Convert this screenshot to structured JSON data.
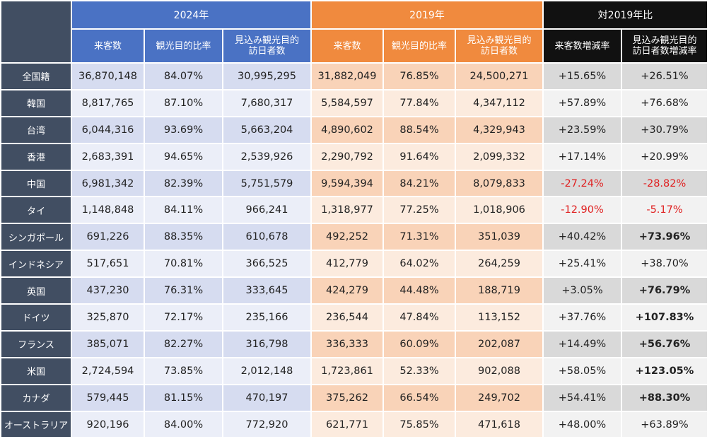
{
  "groups": {
    "y2024": "2024年",
    "y2019": "2019年",
    "compare": "対2019年比"
  },
  "subheaders": {
    "visitors": "来客数",
    "tourism_ratio": "観光目的比率",
    "est_tourist_visitors": "見込み観光目的\n訪日者数",
    "visitor_change": "来客数増減率",
    "est_tourist_change": "見込み観光目的\n訪日者数増減率"
  },
  "rows": [
    {
      "name": "全国籍",
      "v24": "36,870,148",
      "r24": "84.07%",
      "t24": "30,995,295",
      "v19": "31,882,049",
      "r19": "76.85%",
      "t19": "24,500,271",
      "dv": "+15.65%",
      "dt": "+26.51%"
    },
    {
      "name": "韓国",
      "v24": "8,817,765",
      "r24": "87.10%",
      "t24": "7,680,317",
      "v19": "5,584,597",
      "r19": "77.84%",
      "t19": "4,347,112",
      "dv": "+57.89%",
      "dt": "+76.68%"
    },
    {
      "name": "台湾",
      "v24": "6,044,316",
      "r24": "93.69%",
      "t24": "5,663,204",
      "v19": "4,890,602",
      "r19": "88.54%",
      "t19": "4,329,943",
      "dv": "+23.59%",
      "dt": "+30.79%"
    },
    {
      "name": "香港",
      "v24": "2,683,391",
      "r24": "94.65%",
      "t24": "2,539,926",
      "v19": "2,290,792",
      "r19": "91.64%",
      "t19": "2,099,332",
      "dv": "+17.14%",
      "dt": "+20.99%"
    },
    {
      "name": "中国",
      "v24": "6,981,342",
      "r24": "82.39%",
      "t24": "5,751,579",
      "v19": "9,594,394",
      "r19": "84.21%",
      "t19": "8,079,833",
      "dv": "-27.24%",
      "dt": "-28.82%"
    },
    {
      "name": "タイ",
      "v24": "1,148,848",
      "r24": "84.11%",
      "t24": "966,241",
      "v19": "1,318,977",
      "r19": "77.25%",
      "t19": "1,018,906",
      "dv": "-12.90%",
      "dt": "-5.17%"
    },
    {
      "name": "シンガポール",
      "v24": "691,226",
      "r24": "88.35%",
      "t24": "610,678",
      "v19": "492,252",
      "r19": "71.31%",
      "t19": "351,039",
      "dv": "+40.42%",
      "dt": "+73.96%"
    },
    {
      "name": "インドネシア",
      "v24": "517,651",
      "r24": "70.81%",
      "t24": "366,525",
      "v19": "412,779",
      "r19": "64.02%",
      "t19": "264,259",
      "dv": "+25.41%",
      "dt": "+38.70%"
    },
    {
      "name": "英国",
      "v24": "437,230",
      "r24": "76.31%",
      "t24": "333,645",
      "v19": "424,279",
      "r19": "44.48%",
      "t19": "188,719",
      "dv": "+3.05%",
      "dt": "+76.79%"
    },
    {
      "name": "ドイツ",
      "v24": "325,870",
      "r24": "72.17%",
      "t24": "235,166",
      "v19": "236,544",
      "r19": "47.84%",
      "t19": "113,152",
      "dv": "+37.76%",
      "dt": "+107.83%"
    },
    {
      "name": "フランス",
      "v24": "385,071",
      "r24": "82.27%",
      "t24": "316,798",
      "v19": "336,333",
      "r19": "60.09%",
      "t19": "202,087",
      "dv": "+14.49%",
      "dt": "+56.76%"
    },
    {
      "name": "米国",
      "v24": "2,724,594",
      "r24": "73.85%",
      "t24": "2,012,148",
      "v19": "1,723,861",
      "r19": "52.33%",
      "t19": "902,088",
      "dv": "+58.05%",
      "dt": "+123.05%"
    },
    {
      "name": "カナダ",
      "v24": "579,445",
      "r24": "81.15%",
      "t24": "470,197",
      "v19": "375,262",
      "r19": "66.54%",
      "t19": "249,702",
      "dv": "+54.41%",
      "dt": "+88.30%"
    },
    {
      "name": "オーストラリア",
      "v24": "920,196",
      "r24": "84.00%",
      "t24": "772,920",
      "v19": "621,771",
      "r19": "75.85%",
      "t19": "471,618",
      "dv": "+48.00%",
      "dt": "+63.89%"
    }
  ],
  "negative_color": "#e02020",
  "bold_rows_dt": [
    6,
    8,
    9,
    10,
    11,
    12
  ]
}
